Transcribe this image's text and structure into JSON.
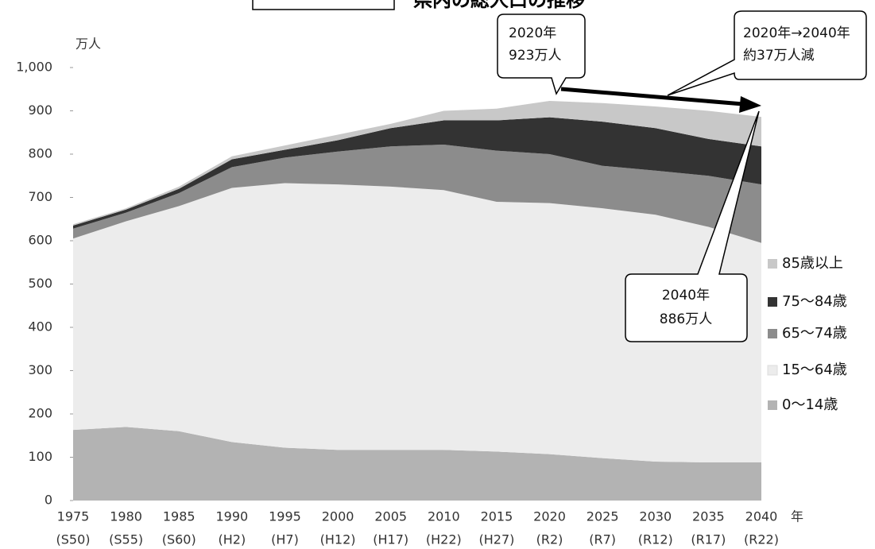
{
  "chart_data": {
    "type": "stacked_area",
    "title": "県内の総人口の推移",
    "y_unit": "万人",
    "x_unit": "年",
    "categories": [
      "1975",
      "1980",
      "1985",
      "1990",
      "1995",
      "2000",
      "2005",
      "2010",
      "2015",
      "2020",
      "2025",
      "2030",
      "2035",
      "2040"
    ],
    "category_sublabels": [
      "(S50)",
      "(S55)",
      "(S60)",
      "(H2)",
      "(H7)",
      "(H12)",
      "(H17)",
      "(H22)",
      "(H27)",
      "(R2)",
      "(R7)",
      "(R12)",
      "(R17)",
      "(R22)"
    ],
    "series": [
      {
        "name": "0～14歳",
        "color": "#b3b3b3",
        "values": [
          163,
          170,
          160,
          135,
          122,
          117,
          117,
          117,
          113,
          107,
          98,
          90,
          88,
          88
        ]
      },
      {
        "name": "15～64歳",
        "color": "#ececec",
        "values": [
          442,
          475,
          520,
          587,
          611,
          613,
          608,
          600,
          577,
          580,
          577,
          570,
          544,
          507
        ]
      },
      {
        "name": "65～74歳",
        "color": "#8c8c8c",
        "values": [
          23,
          20,
          30,
          48,
          59,
          76,
          93,
          105,
          118,
          113,
          98,
          102,
          118,
          135
        ]
      },
      {
        "name": "75～84歳",
        "color": "#333333",
        "values": [
          7,
          7,
          10,
          18,
          18,
          26,
          42,
          56,
          70,
          85,
          102,
          98,
          85,
          88
        ]
      },
      {
        "name": "85歳以上",
        "color": "#c8c8c8",
        "values": [
          3,
          3,
          5,
          7,
          10,
          13,
          10,
          22,
          27,
          38,
          43,
          50,
          65,
          68
        ]
      }
    ],
    "ylim": [
      0,
      1000
    ],
    "yticks": [
      0,
      100,
      200,
      300,
      400,
      500,
      600,
      700,
      800,
      900,
      {
        "value": 1000,
        "label": "1,000"
      }
    ],
    "annotations": [
      {
        "lines": [
          "2020年",
          "923万人"
        ]
      },
      {
        "lines": [
          "2020年→2040年",
          "約37万人減"
        ]
      },
      {
        "lines": [
          "2040年",
          "886万人"
        ]
      }
    ]
  }
}
